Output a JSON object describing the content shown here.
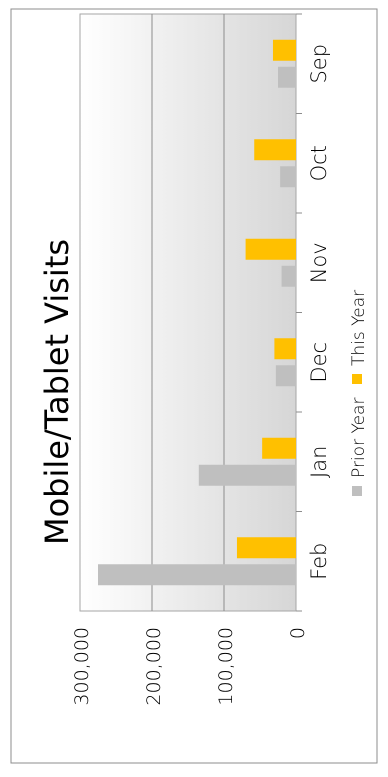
{
  "chart_data": {
    "type": "bar",
    "title": "Mobile/Tablet Visits",
    "categories": [
      "Sep",
      "Oct",
      "Nov",
      "Dec",
      "Jan",
      "Feb"
    ],
    "series": [
      {
        "name": "Prior Year",
        "values": [
          25000,
          22000,
          20000,
          28000,
          135000,
          275000
        ],
        "color": "#bfbfbf"
      },
      {
        "name": "This Year",
        "values": [
          32000,
          58000,
          70000,
          30000,
          47000,
          82000
        ],
        "color": "#ffc000"
      }
    ],
    "y_ticks": [
      "0",
      "100,000",
      "200,000",
      "300,000"
    ],
    "ylim": [
      0,
      300000
    ],
    "grid": true,
    "legend": "bottom",
    "orientation": "rotated-90-counterclockwise"
  }
}
